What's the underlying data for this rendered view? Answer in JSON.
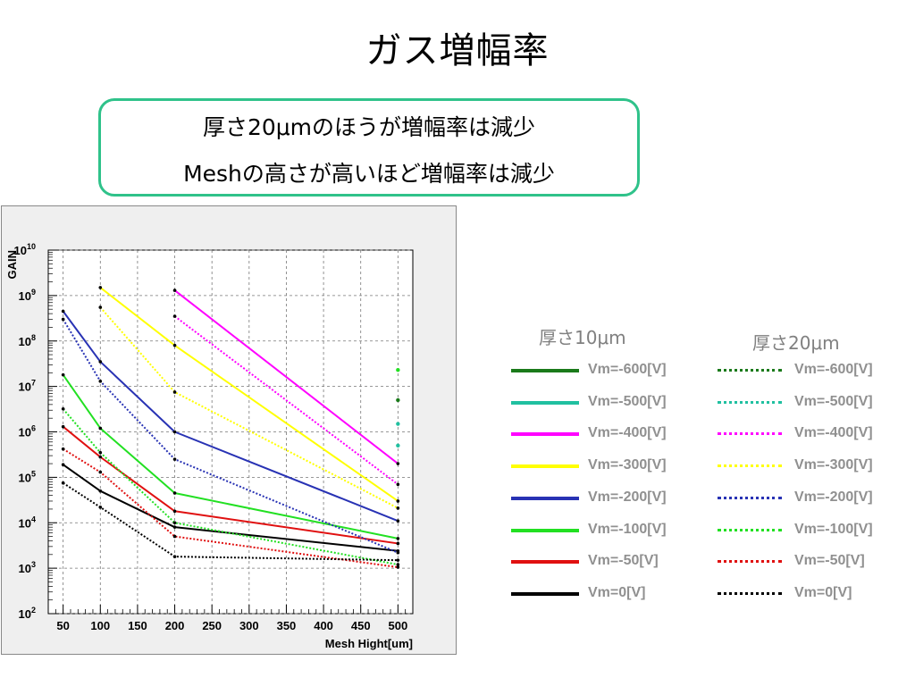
{
  "slide": {
    "title": "ガス増幅率",
    "callout_lines": [
      "厚さ20μmのほうが増幅率は減少",
      "Meshの高さが高いほど増幅率は減少"
    ]
  },
  "legend": {
    "group_10um": "厚さ10μm",
    "group_20um": "厚さ20μm",
    "entries": [
      {
        "label": "Vm=-600[V]",
        "color": "#1a7a1a"
      },
      {
        "label": "Vm=-500[V]",
        "color": "#20c0a0"
      },
      {
        "label": "Vm=-400[V]",
        "color": "#ff00ff"
      },
      {
        "label": "Vm=-300[V]",
        "color": "#ffff00"
      },
      {
        "label": "Vm=-200[V]",
        "color": "#2832b4"
      },
      {
        "label": "Vm=-100[V]",
        "color": "#22e022"
      },
      {
        "label": "Vm=-50[V]",
        "color": "#e01010"
      },
      {
        "label": "Vm=0[V]",
        "color": "#000000"
      }
    ]
  },
  "chart_data": {
    "type": "line",
    "xlabel": "Mesh Hight[um]",
    "ylabel": "GAIN",
    "xlim": [
      30,
      520
    ],
    "ylim": [
      100,
      10000000000
    ],
    "yscale": "log",
    "grid": true,
    "xticks": [
      50,
      100,
      150,
      200,
      250,
      300,
      350,
      400,
      450,
      500
    ],
    "yticks": [
      {
        "value": 100,
        "label_base": "10",
        "label_exp": "2"
      },
      {
        "value": 1000,
        "label_base": "10",
        "label_exp": "3"
      },
      {
        "value": 10000,
        "label_base": "10",
        "label_exp": "4"
      },
      {
        "value": 100000,
        "label_base": "10",
        "label_exp": "5"
      },
      {
        "value": 1000000,
        "label_base": "10",
        "label_exp": "6"
      },
      {
        "value": 10000000,
        "label_base": "10",
        "label_exp": "7"
      },
      {
        "value": 100000000,
        "label_base": "10",
        "label_exp": "8"
      },
      {
        "value": 1000000000,
        "label_base": "10",
        "label_exp": "9"
      },
      {
        "value": 10000000000,
        "label_base": "10",
        "label_exp": "10"
      }
    ],
    "series": [
      {
        "name": "Vm=-400[V]",
        "thickness": "10um",
        "color": "#ff00ff",
        "dashed": false,
        "points": [
          [
            200,
            1300000000
          ],
          [
            500,
            200000
          ]
        ]
      },
      {
        "name": "Vm=-300[V]",
        "thickness": "10um",
        "color": "#ffff00",
        "dashed": false,
        "points": [
          [
            100,
            1500000000
          ],
          [
            200,
            80000000
          ],
          [
            500,
            30000
          ]
        ]
      },
      {
        "name": "Vm=-200[V]",
        "thickness": "10um",
        "color": "#2832b4",
        "dashed": false,
        "points": [
          [
            50,
            450000000
          ],
          [
            100,
            35000000
          ],
          [
            200,
            1000000
          ],
          [
            500,
            11000
          ]
        ]
      },
      {
        "name": "Vm=-100[V]",
        "thickness": "10um",
        "color": "#22e022",
        "dashed": false,
        "points": [
          [
            50,
            18000000
          ],
          [
            100,
            1200000
          ],
          [
            200,
            45000
          ],
          [
            500,
            4500
          ]
        ]
      },
      {
        "name": "Vm=-50[V]",
        "thickness": "10um",
        "color": "#e01010",
        "dashed": false,
        "points": [
          [
            50,
            1300000
          ],
          [
            100,
            280000
          ],
          [
            200,
            18000
          ],
          [
            500,
            3500
          ]
        ]
      },
      {
        "name": "Vm=0[V]",
        "thickness": "10um",
        "color": "#000000",
        "dashed": false,
        "points": [
          [
            50,
            190000
          ],
          [
            100,
            50000
          ],
          [
            200,
            8000
          ],
          [
            500,
            2400
          ]
        ]
      },
      {
        "name": "Vm=-400[V]",
        "thickness": "20um",
        "color": "#ff00ff",
        "dashed": true,
        "points": [
          [
            200,
            350000000
          ],
          [
            500,
            70000
          ]
        ]
      },
      {
        "name": "Vm=-300[V]",
        "thickness": "20um",
        "color": "#ffff00",
        "dashed": true,
        "points": [
          [
            100,
            550000000
          ],
          [
            200,
            7500000
          ],
          [
            500,
            21000
          ]
        ]
      },
      {
        "name": "Vm=-200[V]",
        "thickness": "20um",
        "color": "#2832b4",
        "dashed": true,
        "points": [
          [
            50,
            300000000
          ],
          [
            100,
            13000000
          ],
          [
            200,
            250000
          ],
          [
            500,
            2200
          ]
        ]
      },
      {
        "name": "Vm=-100[V]",
        "thickness": "20um",
        "color": "#22e022",
        "dashed": true,
        "points": [
          [
            50,
            3200000
          ],
          [
            100,
            350000
          ],
          [
            200,
            10000
          ],
          [
            500,
            1200
          ]
        ]
      },
      {
        "name": "Vm=-50[V]",
        "thickness": "20um",
        "color": "#e01010",
        "dashed": true,
        "points": [
          [
            50,
            420000
          ],
          [
            100,
            130000
          ],
          [
            200,
            5000
          ],
          [
            500,
            1050
          ]
        ]
      },
      {
        "name": "Vm=0[V]",
        "thickness": "20um",
        "color": "#000000",
        "dashed": true,
        "points": [
          [
            50,
            75000
          ],
          [
            100,
            22000
          ],
          [
            200,
            1800
          ],
          [
            500,
            1500
          ]
        ]
      }
    ],
    "isolated_points": [
      {
        "x": 500,
        "y": 23000000,
        "color": "#22e022"
      },
      {
        "x": 500,
        "y": 5000000,
        "color": "#1a7a1a"
      },
      {
        "x": 500,
        "y": 1500000,
        "color": "#20c0a0"
      },
      {
        "x": 500,
        "y": 500000,
        "color": "#20c0a0"
      }
    ]
  }
}
